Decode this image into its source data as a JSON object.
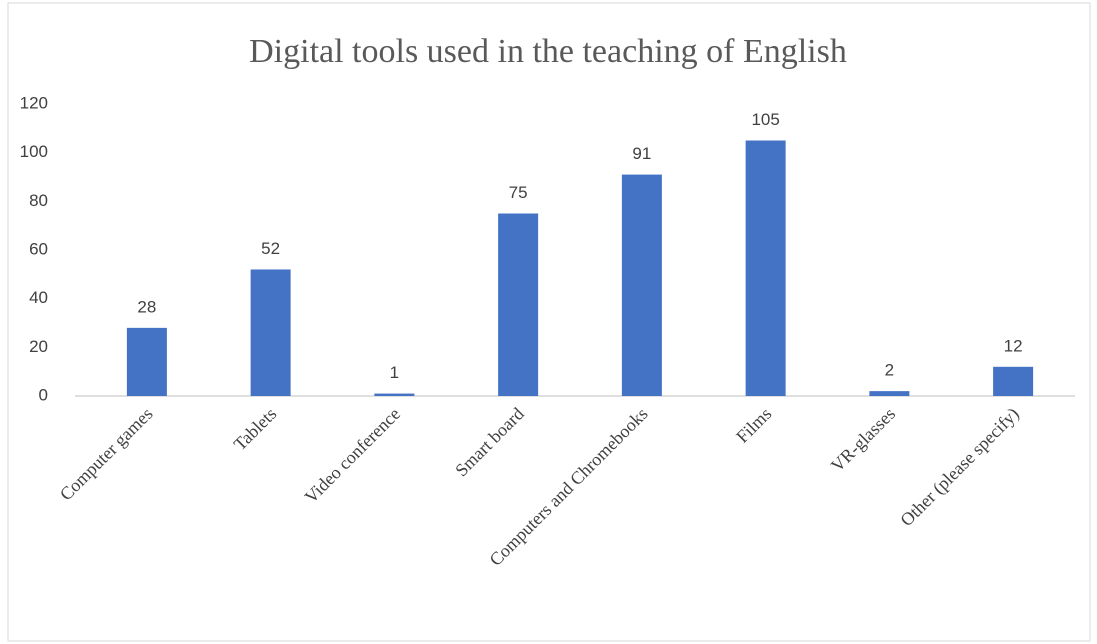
{
  "chart_data": {
    "type": "bar",
    "title": "Digital tools used in the teaching of English",
    "categories": [
      "Computer games",
      "Tablets",
      "Video conference",
      "Smart board",
      "Computers and Chromebooks",
      "Films",
      "VR-glasses",
      "Other (please specify)"
    ],
    "values": [
      28,
      52,
      1,
      75,
      91,
      105,
      2,
      12
    ],
    "color": "#4472c4",
    "ylim": [
      0,
      120
    ],
    "yticks": [
      0,
      20,
      40,
      60,
      80,
      100,
      120
    ],
    "grid": false
  }
}
